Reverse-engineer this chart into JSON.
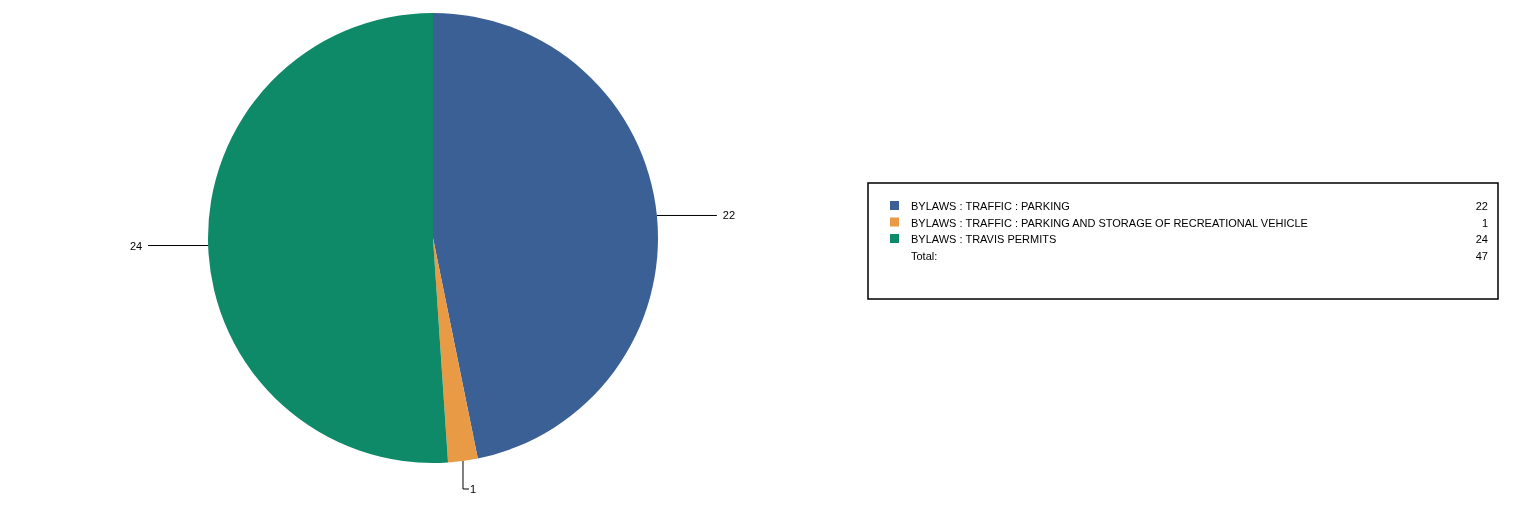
{
  "chart_data": {
    "type": "pie",
    "categories": [
      "BYLAWS : TRAFFIC : PARKING",
      "BYLAWS : TRAFFIC : PARKING AND STORAGE OF RECREATIONAL VEHICLE",
      "BYLAWS : TRAVIS PERMITS"
    ],
    "values": [
      22,
      1,
      24
    ],
    "colors": [
      "#3a6095",
      "#e99a45",
      "#0e8a68"
    ],
    "value_labels": [
      "22",
      "1",
      "24"
    ],
    "legend": "right",
    "annotations": [
      "22",
      "1",
      "24",
      "Total:",
      "47"
    ]
  }
}
